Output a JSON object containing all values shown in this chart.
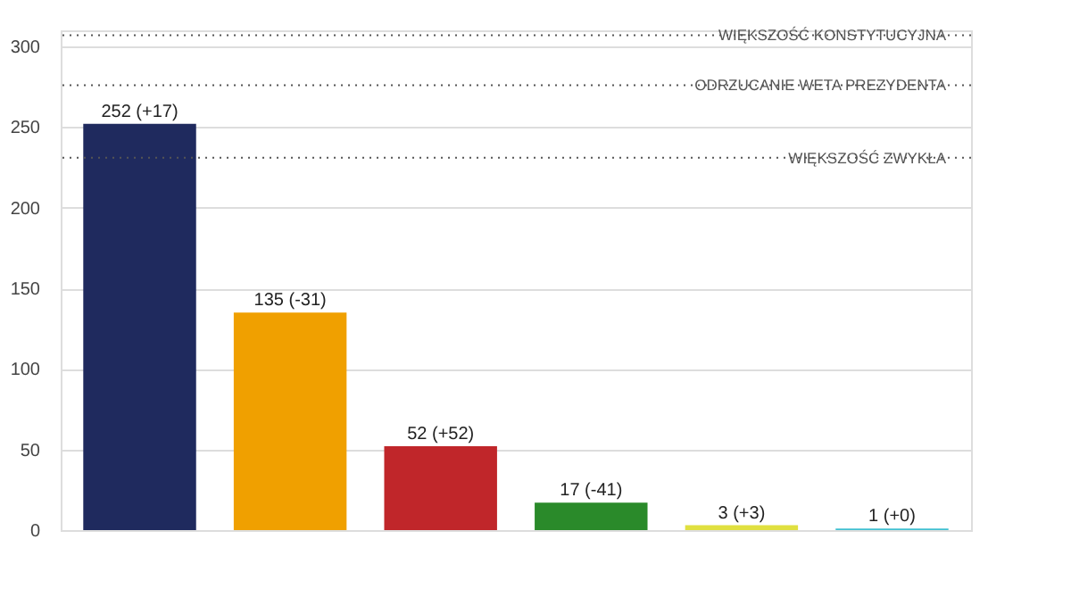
{
  "chart_data": {
    "type": "bar",
    "categories": [
      null,
      null,
      null,
      null,
      null,
      null
    ],
    "values": [
      252,
      135,
      52,
      17,
      3,
      1
    ],
    "colors": [
      "#1f2a5e",
      "#f0a000",
      "#c0262a",
      "#2a8a2a",
      "#e0e040",
      "#40c0d0"
    ],
    "value_labels": [
      "252 (+17)",
      "135 (-31)",
      "52  (+52)",
      "17 (-41)",
      "3 (+3)",
      "1 (+0)"
    ],
    "ylim": [
      0,
      310
    ],
    "yticks": [
      0,
      50,
      100,
      150,
      200,
      250,
      300
    ],
    "grid": "y",
    "tick_labels": "y",
    "ref_lines": [
      {
        "axis": "y",
        "value": 307,
        "label": "WIĘKSZOŚĆ KONSTYTUCYJNA",
        "line_style": "dotted",
        "color": "#555555"
      },
      {
        "axis": "y",
        "value": 276,
        "label": "ODRZUCANIE WETA PREZYDENTA",
        "line_style": "dotted",
        "color": "#555555"
      },
      {
        "axis": "y",
        "value": 231,
        "label": "WIĘKSZOŚĆ ZWYKŁA",
        "line_style": "dotted",
        "color": "#555555"
      }
    ]
  }
}
